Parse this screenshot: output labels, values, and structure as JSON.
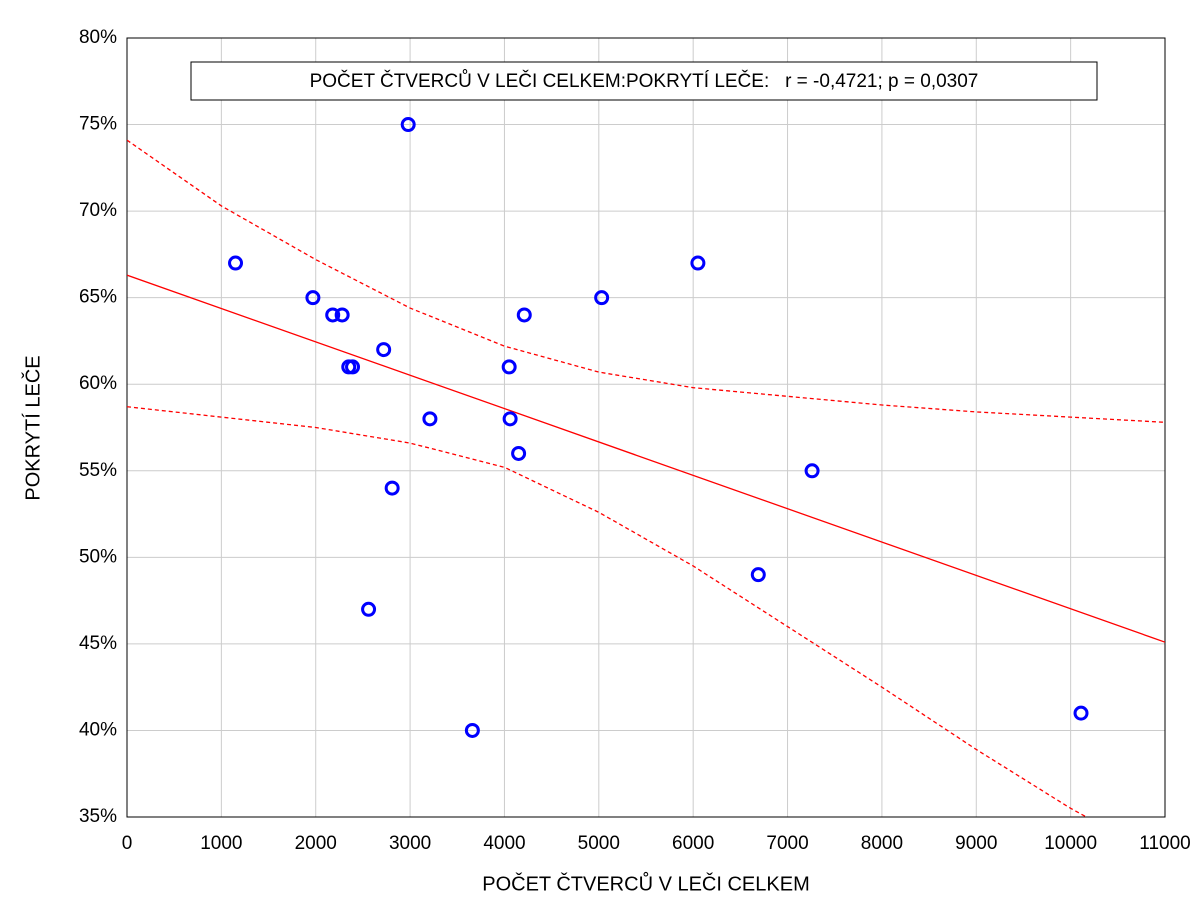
{
  "chart_data": {
    "type": "scatter",
    "annotation": "POČET ČTVERCŮ V LEČI CELKEM:POKRYTÍ LEČE:   r = -0,4721; p = 0,0307",
    "x_label": "POČET ČTVERCŮ V LEČI CELKEM",
    "y_label": "POKRYTÍ LEČE",
    "x": [
      1150,
      1970,
      2180,
      2280,
      2350,
      2390,
      2720,
      2810,
      2560,
      2980,
      3210,
      3660,
      4050,
      4060,
      4150,
      4210,
      5030,
      6050,
      6690,
      7260,
      10110
    ],
    "values": [
      67,
      65,
      64,
      64,
      61,
      61,
      62,
      54,
      47,
      75,
      58,
      40,
      61,
      58,
      56,
      64,
      65,
      67,
      49,
      55,
      41
    ],
    "color": "#0000ff",
    "fit": {
      "x": [
        0,
        11000
      ],
      "values": [
        66.3,
        45.1
      ],
      "color": "#ff0000"
    },
    "bands": [
      {
        "x": [
          0,
          1000,
          2000,
          3000,
          4000,
          5000,
          6000,
          7000,
          8000,
          9000,
          10000,
          11000
        ],
        "values": [
          74.1,
          70.3,
          67.2,
          64.4,
          62.2,
          60.7,
          59.8,
          59.3,
          58.8,
          58.4,
          58.1,
          57.8
        ],
        "color": "#ff0000"
      },
      {
        "x": [
          0,
          1000,
          2000,
          3000,
          4000,
          5000,
          6000,
          7000,
          8000,
          9000,
          10000,
          10200
        ],
        "values": [
          58.7,
          58.1,
          57.5,
          56.6,
          55.2,
          52.6,
          49.5,
          46.0,
          42.5,
          38.9,
          35.5,
          34.9
        ],
        "color": "#ff0000"
      }
    ],
    "xlim": [
      0,
      11000
    ],
    "ylim": [
      35,
      80
    ],
    "xticks": [
      0,
      1000,
      2000,
      3000,
      4000,
      5000,
      6000,
      7000,
      8000,
      9000,
      10000,
      11000
    ],
    "yticks": [
      {
        "value": 35,
        "label": "35%"
      },
      {
        "value": 40,
        "label": "40%"
      },
      {
        "value": 45,
        "label": "45%"
      },
      {
        "value": 50,
        "label": "50%"
      },
      {
        "value": 55,
        "label": "55%"
      },
      {
        "value": 60,
        "label": "60%"
      },
      {
        "value": 65,
        "label": "65%"
      },
      {
        "value": 70,
        "label": "70%"
      },
      {
        "value": 75,
        "label": "75%"
      },
      {
        "value": 80,
        "label": "80%"
      }
    ],
    "grid": true
  }
}
